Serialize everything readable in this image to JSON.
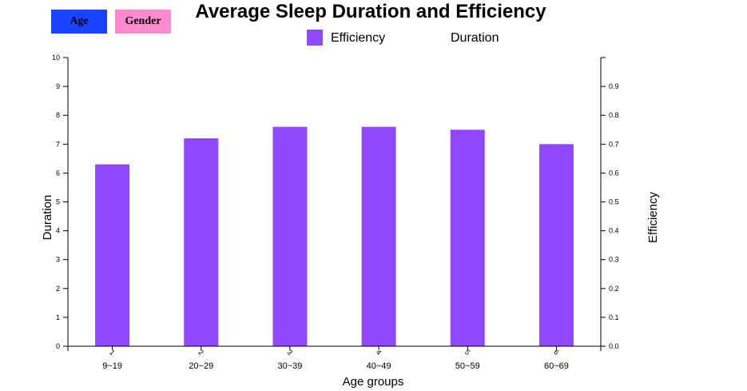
{
  "controls": {
    "age_label": "Age",
    "gender_label": "Gender",
    "age_color": "#1a43ff",
    "gender_color": "#ff8ad0"
  },
  "chart_data": {
    "type": "bar",
    "title": "Average Sleep Duration and Efficiency",
    "categories": [
      "1",
      "2",
      "3",
      "4",
      "5",
      "6"
    ],
    "group_labels": [
      "9~19",
      "20~29",
      "30~39",
      "40~49",
      "50~59",
      "60~69"
    ],
    "series": [
      {
        "name": "Efficiency",
        "values": [
          0.63,
          0.72,
          0.76,
          0.76,
          0.75,
          0.7
        ],
        "color": "#9146ff"
      }
    ],
    "legend": [
      "Efficiency",
      "Duration"
    ],
    "legend_position": "top",
    "xlabel": "Age groups",
    "ylabel_left": "Duration",
    "ylabel_right": "Efficiency",
    "ylim_left": [
      0,
      10
    ],
    "ylim_right": [
      0,
      1.0
    ],
    "yticks_left": [
      "0",
      "1",
      "2",
      "3",
      "4",
      "5",
      "6",
      "7",
      "8",
      "9",
      "10"
    ],
    "yticks_right": [
      "0.0",
      "0.1",
      "0.2",
      "0.3",
      "0.4",
      "0.5",
      "0.6",
      "0.7",
      "0.8",
      "0.9"
    ],
    "grid": false
  }
}
